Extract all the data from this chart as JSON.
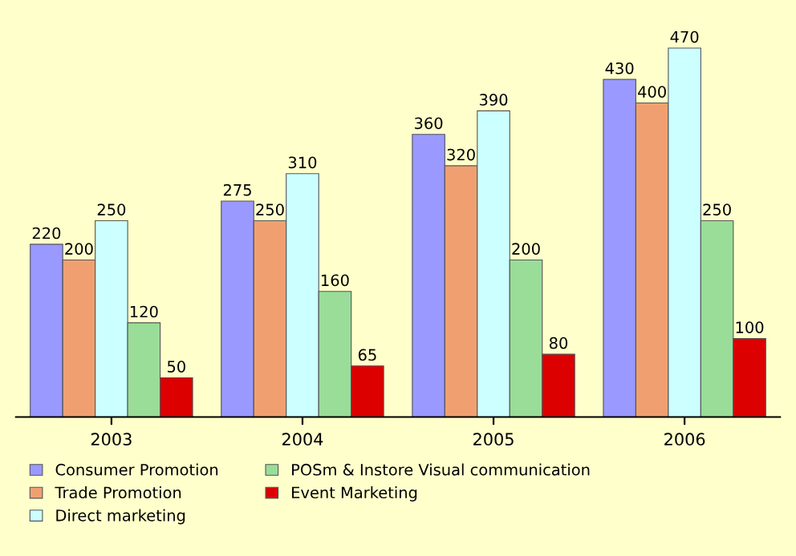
{
  "chart_data": {
    "type": "bar",
    "categories": [
      "2003",
      "2004",
      "2005",
      "2006"
    ],
    "series": [
      {
        "name": "Consumer Promotion",
        "color": "#9999ff",
        "values": [
          220,
          275,
          360,
          430
        ]
      },
      {
        "name": "Trade Promotion",
        "color": "#f0a070",
        "values": [
          200,
          250,
          320,
          400
        ]
      },
      {
        "name": "Direct marketing",
        "color": "#ccffff",
        "values": [
          250,
          310,
          390,
          470
        ]
      },
      {
        "name": "POSm & Instore Visual communication",
        "color": "#99dd99",
        "values": [
          120,
          160,
          200,
          250
        ]
      },
      {
        "name": "Event Marketing",
        "color": "#dd0000",
        "values": [
          50,
          65,
          80,
          100
        ]
      }
    ],
    "data_labels": true,
    "legend": "bottom",
    "grid": false
  }
}
